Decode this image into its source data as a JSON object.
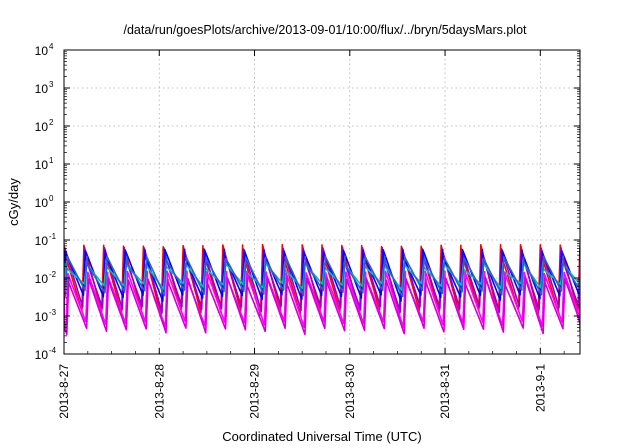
{
  "chart_data": {
    "type": "line",
    "title": "/data/run/goesPlots/archive/2013-09-01/10:00/flux/../bryn/5daysMars.plot",
    "xlabel": "Coordinated Universal Time (UTC)",
    "ylabel": "cGy/day",
    "yscale": "log",
    "ylim": [
      0.0001,
      10000
    ],
    "y_ticks": [
      {
        "base": "10",
        "exp": "-4"
      },
      {
        "base": "10",
        "exp": "-3"
      },
      {
        "base": "10",
        "exp": "-2"
      },
      {
        "base": "10",
        "exp": "-1"
      },
      {
        "base": "10",
        "exp": "0"
      },
      {
        "base": "10",
        "exp": "1"
      },
      {
        "base": "10",
        "exp": "2"
      },
      {
        "base": "10",
        "exp": "3"
      },
      {
        "base": "10",
        "exp": "4"
      }
    ],
    "xlim": [
      "2013-08-27",
      "2013-09-01T10:00"
    ],
    "x_ticks": [
      "2013-8-27",
      "2013-8-28",
      "2013-8-29",
      "2013-8-30",
      "2013-8-31",
      "2013-9-1"
    ],
    "grid": true,
    "pattern": {
      "period_hours": 5,
      "note_series_count": 7
    },
    "series": [
      {
        "color": "#ff0000",
        "peak": 0.06,
        "trough": 0.0012
      },
      {
        "color": "#9400d3",
        "peak": 0.05,
        "trough": 0.0015
      },
      {
        "color": "#0000ff",
        "peak": 0.045,
        "trough": 0.003
      },
      {
        "color": "#00bfbf",
        "peak": 0.02,
        "trough": 0.006
      },
      {
        "color": "#3060c0",
        "peak": 0.03,
        "trough": 0.004
      },
      {
        "color": "#ff00ff",
        "peak": 0.012,
        "trough": 0.0006
      },
      {
        "color": "#d000d0",
        "peak": 0.008,
        "trough": 0.0004
      }
    ]
  }
}
